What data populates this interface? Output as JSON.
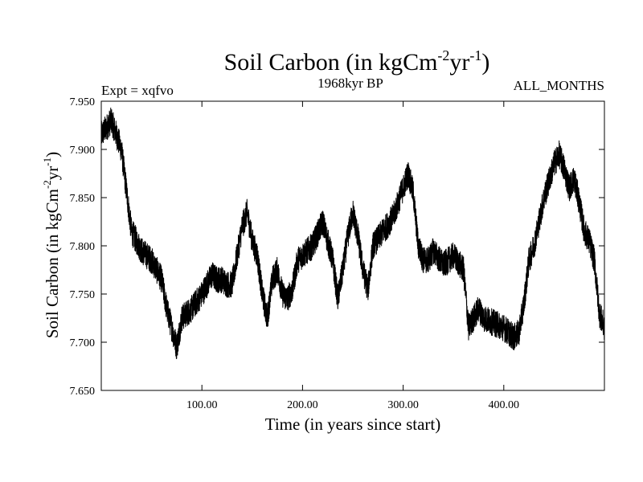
{
  "chart_data": {
    "type": "line",
    "title": "Soil Carbon (in kgCm-2yr-1)",
    "title_parts": {
      "main": "Soil Carbon (in kgCm",
      "sup1": "-2",
      "mid": "yr",
      "sup2": "-1",
      "end": ")"
    },
    "subtitle_left": "Expt = xqfvo",
    "subtitle_center": "1968kyr BP",
    "subtitle_right": "ALL_MONTHS",
    "xlabel": "Time (in years since start)",
    "ylabel": "Soil Carbon (in kgCm-2yr-1)",
    "ylabel_parts": {
      "main": "Soil Carbon (in kgCm",
      "sup1": "-2",
      "mid": "yr",
      "sup2": "-1",
      "end": ")"
    },
    "xlim": [
      0,
      500
    ],
    "ylim": [
      7.65,
      7.95
    ],
    "xticks": [
      100,
      200,
      300,
      400
    ],
    "xtick_labels": [
      "100.00",
      "200.00",
      "300.00",
      "400.00"
    ],
    "yticks": [
      7.65,
      7.7,
      7.75,
      7.8,
      7.85,
      7.9,
      7.95
    ],
    "ytick_labels": [
      "7.650",
      "7.700",
      "7.750",
      "7.800",
      "7.850",
      "7.900",
      "7.950"
    ],
    "series": [
      {
        "name": "Soil Carbon",
        "color": "#000000",
        "x": [
          0,
          10,
          20,
          30,
          40,
          50,
          60,
          65,
          70,
          75,
          80,
          90,
          100,
          110,
          115,
          120,
          125,
          130,
          140,
          145,
          150,
          155,
          160,
          165,
          170,
          175,
          180,
          185,
          190,
          195,
          200,
          210,
          220,
          230,
          235,
          240,
          245,
          250,
          255,
          260,
          265,
          270,
          280,
          290,
          300,
          305,
          310,
          315,
          320,
          325,
          330,
          340,
          350,
          360,
          365,
          370,
          375,
          380,
          390,
          400,
          410,
          415,
          420,
          425,
          430,
          440,
          450,
          455,
          460,
          465,
          470,
          475,
          480,
          485,
          490,
          495,
          500
        ],
        "y": [
          7.915,
          7.93,
          7.9,
          7.815,
          7.795,
          7.785,
          7.765,
          7.735,
          7.715,
          7.695,
          7.725,
          7.735,
          7.75,
          7.77,
          7.765,
          7.765,
          7.76,
          7.76,
          7.82,
          7.835,
          7.805,
          7.79,
          7.75,
          7.725,
          7.765,
          7.775,
          7.75,
          7.745,
          7.755,
          7.785,
          7.79,
          7.8,
          7.825,
          7.785,
          7.745,
          7.775,
          7.81,
          7.835,
          7.81,
          7.775,
          7.755,
          7.8,
          7.815,
          7.83,
          7.86,
          7.875,
          7.855,
          7.8,
          7.785,
          7.785,
          7.795,
          7.78,
          7.79,
          7.775,
          7.715,
          7.725,
          7.735,
          7.725,
          7.72,
          7.715,
          7.705,
          7.71,
          7.74,
          7.785,
          7.8,
          7.85,
          7.885,
          7.895,
          7.88,
          7.86,
          7.87,
          7.845,
          7.815,
          7.805,
          7.785,
          7.73,
          7.715
        ],
        "noise_amplitude": 0.014
      }
    ]
  }
}
